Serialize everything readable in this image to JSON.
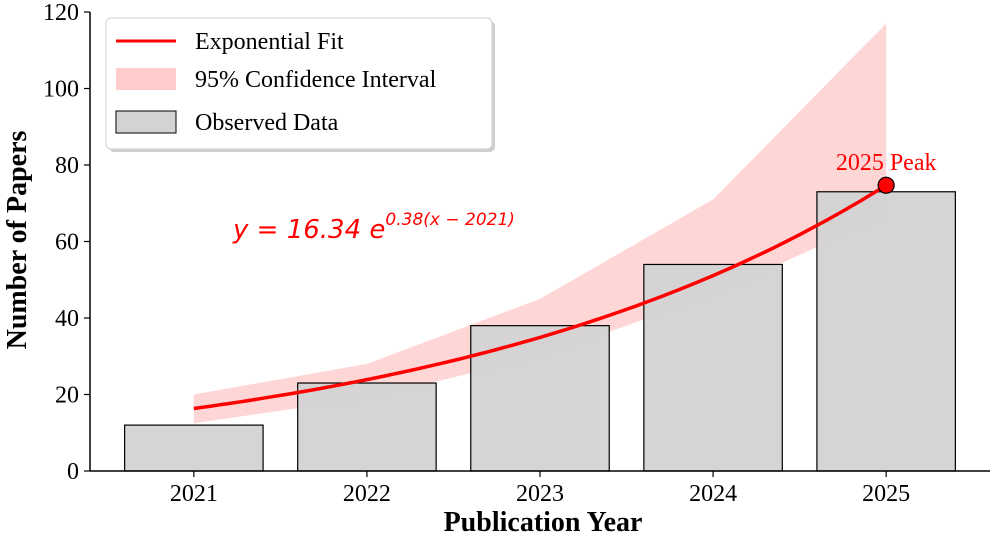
{
  "chart_data": {
    "type": "bar",
    "title": "",
    "xlabel": "Publication Year",
    "ylabel": "Number of Papers",
    "categories": [
      "2021",
      "2022",
      "2023",
      "2024",
      "2025"
    ],
    "x": [
      2021,
      2022,
      2023,
      2024,
      2025
    ],
    "series": [
      {
        "name": "Observed Data",
        "type": "bar",
        "values": [
          12,
          23,
          38,
          54,
          73
        ]
      }
    ],
    "fit": {
      "name": "Exponential Fit",
      "type": "line",
      "a": 16.34,
      "b": 0.38,
      "x0": 2021,
      "equation": {
        "prefix": "y = 16.34 ",
        "base": "e",
        "exponent": "0.38(x − 2021)"
      }
    },
    "confidence_band": {
      "name": "95% Confidence Interval",
      "x": [
        2021,
        2022,
        2023,
        2024,
        2025
      ],
      "lower": [
        12.5,
        19,
        30,
        46,
        67
      ],
      "upper": [
        20,
        28,
        45,
        71,
        117
      ]
    },
    "peak": {
      "x": 2025,
      "y": 73,
      "label": "2025 Peak"
    },
    "ylim": [
      0,
      120
    ],
    "yticks": [
      0,
      20,
      40,
      60,
      80,
      100,
      120
    ],
    "legend": {
      "position": "top-left",
      "entries": [
        "Exponential Fit",
        "95% Confidence Interval",
        "Observed Data"
      ]
    },
    "grid": false,
    "colors": {
      "bar_fill": "#d3d3d3",
      "bar_edge": "#000000",
      "fit_line": "#ff0000",
      "band": "#ffcccc",
      "peak_marker": "#ff0000"
    }
  }
}
